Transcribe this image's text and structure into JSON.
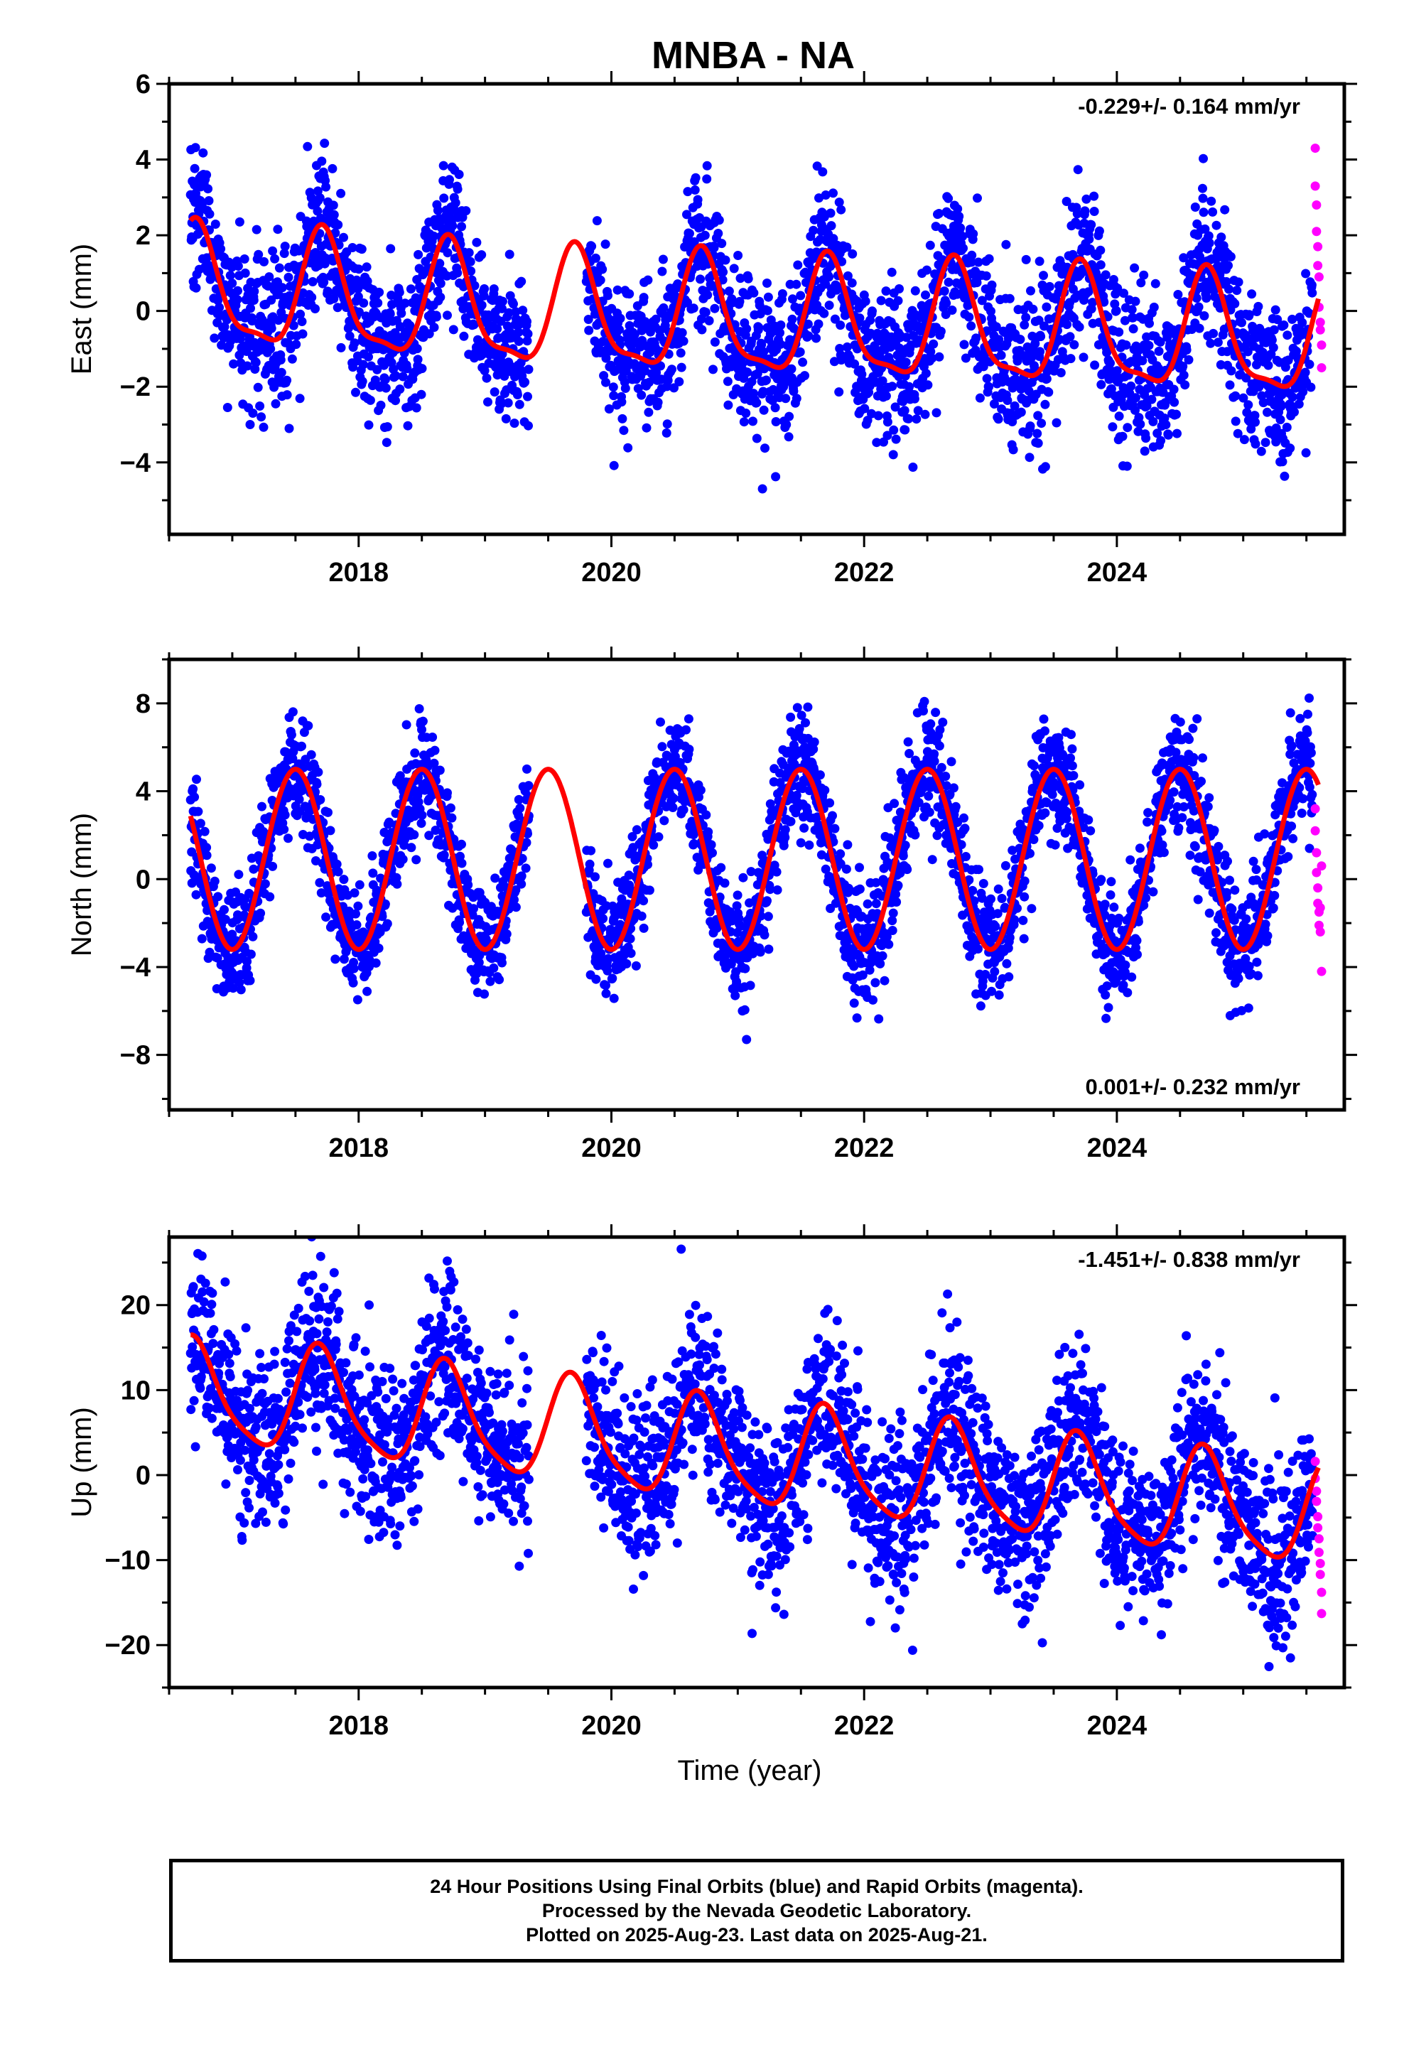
{
  "title": "MNBA - NA",
  "colors": {
    "final": "#0000ff",
    "rapid": "#ff00ff",
    "model": "#ff0000",
    "axis": "#000000"
  },
  "chart_data": [
    {
      "type": "scatter",
      "component": "east",
      "ylabel": "East (mm)",
      "xlabel": "",
      "rate_label": "-0.229+/- 0.164 mm/yr",
      "rate_position": "top-right",
      "xlim": [
        2016.5,
        2025.8
      ],
      "ylim": [
        -5.9,
        6.0
      ],
      "x_ticks": [
        2018,
        2020,
        2022,
        2024
      ],
      "x_tick_labels": [
        "2018",
        "2020",
        "2022",
        "2024"
      ],
      "y_ticks": [
        -4,
        -2,
        0,
        2,
        4,
        6
      ],
      "y_tick_labels": [
        "−4",
        "−2",
        "0",
        "2",
        "4",
        "6"
      ],
      "data_range": [
        2016.67,
        2025.55
      ],
      "gap": [
        2019.35,
        2019.8
      ],
      "model": {
        "trend": -0.229,
        "offsets": [
          [
            2016.6,
            0.55
          ],
          [
            2017.6,
            0.37
          ],
          [
            2018.6,
            0.1
          ],
          [
            2019.6,
            -0.1
          ],
          [
            2020.6,
            -0.2
          ],
          [
            2021.6,
            -0.35
          ],
          [
            2022.6,
            -0.45
          ],
          [
            2023.6,
            -0.55
          ],
          [
            2024.6,
            -0.7
          ],
          [
            2025.6,
            -0.85
          ]
        ],
        "annual": {
          "amp": 1.5,
          "peak": 0.72
        },
        "semiannual": {
          "amp": 0.45,
          "peak": 0.7
        }
      },
      "scatter_sigma": 1.0,
      "rapid_points": {
        "x": [
          2025.57,
          2025.57,
          2025.58,
          2025.58,
          2025.59,
          2025.59,
          2025.6,
          2025.6,
          2025.61,
          2025.61,
          2025.62,
          2025.62
        ],
        "y": [
          4.3,
          3.3,
          2.8,
          2.1,
          1.7,
          1.2,
          0.9,
          0.1,
          -0.3,
          -0.5,
          -0.9,
          -1.5
        ]
      }
    },
    {
      "type": "scatter",
      "component": "north",
      "ylabel": "North (mm)",
      "xlabel": "",
      "rate_label": "0.001+/- 0.232 mm/yr",
      "rate_position": "bottom-right",
      "xlim": [
        2016.5,
        2025.8
      ],
      "ylim": [
        -10.5,
        10.0
      ],
      "x_ticks": [
        2018,
        2020,
        2022,
        2024
      ],
      "x_tick_labels": [
        "2018",
        "2020",
        "2022",
        "2024"
      ],
      "y_ticks": [
        -8,
        -4,
        0,
        4,
        8
      ],
      "y_tick_labels": [
        "−8",
        "−4",
        "0",
        "4",
        "8"
      ],
      "data_range": [
        2016.67,
        2025.55
      ],
      "gap": [
        2019.35,
        2019.8
      ],
      "model": {
        "trend": 0.001,
        "offsets": [
          [
            2016.6,
            0.9
          ],
          [
            2025.6,
            0.9
          ]
        ],
        "annual": {
          "amp": 4.1,
          "peak": 0.5
        },
        "semiannual": {
          "amp": 0.0,
          "peak": 0.0
        }
      },
      "scatter_sigma": 1.3,
      "rapid_points": {
        "x": [
          2025.57,
          2025.57,
          2025.58,
          2025.58,
          2025.59,
          2025.59,
          2025.6,
          2025.6,
          2025.61,
          2025.61,
          2025.62,
          2025.62
        ],
        "y": [
          3.2,
          2.2,
          1.2,
          0.3,
          -0.4,
          -1.1,
          -1.5,
          -2.1,
          -2.4,
          -1.3,
          0.6,
          -4.2
        ]
      }
    },
    {
      "type": "scatter",
      "component": "up",
      "ylabel": "Up (mm)",
      "xlabel": "Time (year)",
      "rate_label": "-1.451+/- 0.838 mm/yr",
      "rate_position": "top-right",
      "xlim": [
        2016.5,
        2025.8
      ],
      "ylim": [
        -25.0,
        28.0
      ],
      "x_ticks": [
        2018,
        2020,
        2022,
        2024
      ],
      "x_tick_labels": [
        "2018",
        "2020",
        "2022",
        "2024"
      ],
      "y_ticks": [
        -20,
        -10,
        0,
        10,
        20
      ],
      "y_tick_labels": [
        "−20",
        "−10",
        "0",
        "10",
        "20"
      ],
      "data_range": [
        2016.67,
        2025.55
      ],
      "gap": [
        2019.35,
        2019.8
      ],
      "model": {
        "trend": -1.451,
        "offsets": [
          [
            2016.6,
            9.5
          ],
          [
            2017.6,
            8.6
          ],
          [
            2018.6,
            6.8
          ],
          [
            2019.6,
            5.2
          ],
          [
            2020.6,
            3.0
          ],
          [
            2021.6,
            1.5
          ],
          [
            2022.6,
            -0.1
          ],
          [
            2023.6,
            -1.7
          ],
          [
            2024.6,
            -3.3
          ],
          [
            2025.6,
            -4.8
          ]
        ],
        "annual": {
          "amp": 6.0,
          "peak": 0.7
        },
        "semiannual": {
          "amp": 1.2,
          "peak": 0.65
        }
      },
      "scatter_sigma": 5.0,
      "rapid_points": {
        "x": [
          2025.57,
          2025.57,
          2025.58,
          2025.58,
          2025.59,
          2025.59,
          2025.6,
          2025.6,
          2025.61,
          2025.61,
          2025.62,
          2025.62
        ],
        "y": [
          1.6,
          -0.4,
          -1.9,
          -3.1,
          -4.9,
          -6.2,
          -7.5,
          -9.1,
          -10.4,
          -11.7,
          -13.8,
          -16.3
        ]
      }
    }
  ],
  "footer": {
    "line1": "24 Hour Positions Using Final Orbits (blue) and Rapid Orbits (magenta).",
    "line2": "Processed by the Nevada Geodetic Laboratory.",
    "line3": "Plotted on 2025-Aug-23. Last data on 2025-Aug-21."
  }
}
